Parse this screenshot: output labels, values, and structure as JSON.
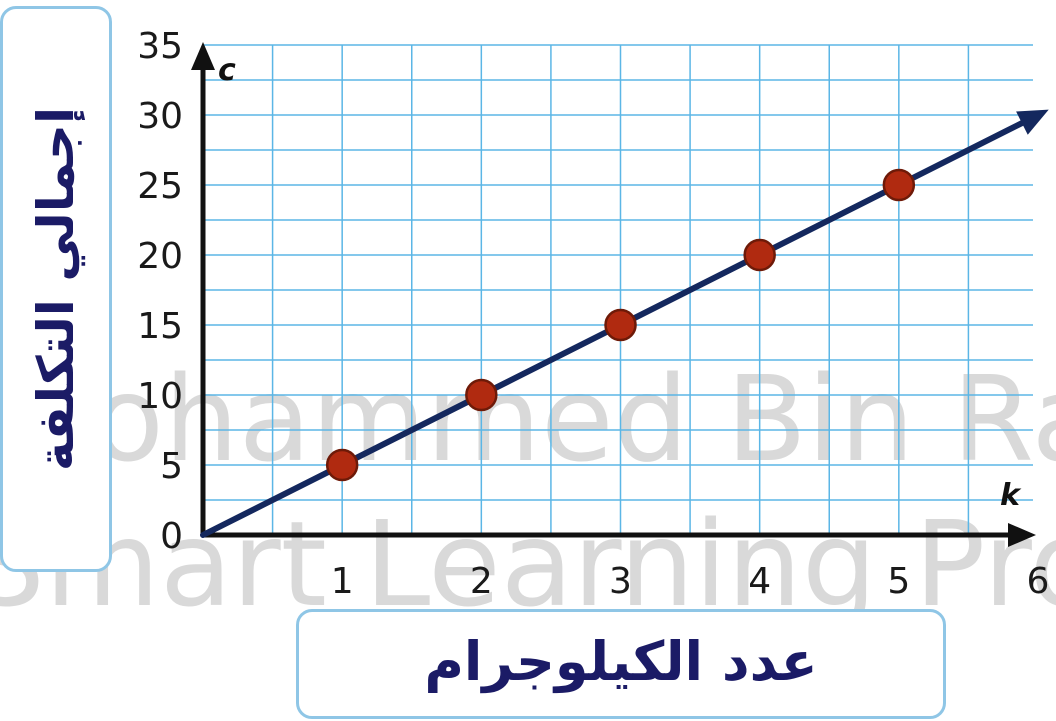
{
  "chart_data": {
    "type": "line",
    "x": [
      1,
      2,
      3,
      4,
      5
    ],
    "y": [
      5,
      10,
      15,
      20,
      25
    ],
    "line": {
      "x": [
        0,
        6
      ],
      "y": [
        0,
        30
      ]
    },
    "xlim": [
      0,
      6
    ],
    "ylim": [
      0,
      35
    ],
    "xticks": [
      "1",
      "2",
      "3",
      "4",
      "5",
      "6"
    ],
    "yticks": [
      "0",
      "5",
      "10",
      "15",
      "20",
      "25",
      "30",
      "35"
    ],
    "x_var": "k",
    "y_var": "c",
    "xlabel": "عدد الكيلوجرام",
    "ylabel": "إجمالي التكلفة",
    "grid": true
  },
  "colors": {
    "grid": "#5bb6e6",
    "line": "#14285e",
    "point_fill": "#b02a10",
    "point_stroke": "#6e1a08",
    "label_text": "#1b1b66",
    "label_border": "#8fc6e6"
  },
  "watermark": [
    "Mohammed Bin Rashid",
    "Smart Learning Program"
  ]
}
